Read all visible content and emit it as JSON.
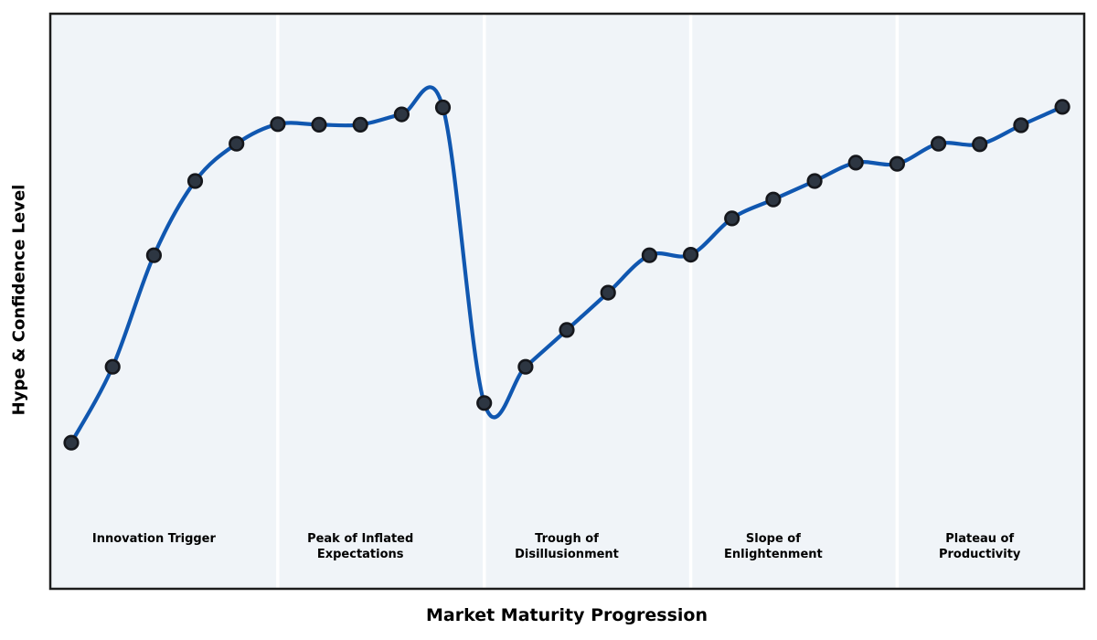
{
  "chart_data": {
    "type": "line",
    "title": "",
    "xlabel": "Market Maturity Progression",
    "ylabel": "Hype & Confidence Level",
    "x": [
      0,
      1,
      2,
      3,
      4,
      5,
      6,
      7,
      8,
      9,
      10,
      11,
      12,
      13,
      14,
      15,
      16,
      17,
      18,
      19,
      20,
      21,
      22,
      23,
      24
    ],
    "y": [
      25.4,
      38.6,
      58.0,
      70.9,
      77.4,
      80.8,
      80.7,
      80.7,
      82.5,
      83.7,
      32.3,
      38.6,
      45.0,
      51.5,
      58.0,
      58.1,
      64.4,
      67.7,
      70.9,
      74.1,
      73.9,
      77.4,
      77.3,
      80.6,
      83.8
    ],
    "xlim": [
      -0.51,
      24.53
    ],
    "ylim": [
      0,
      100
    ],
    "grid": false,
    "legend": "none",
    "curve_style": "smooth-spline-through-points",
    "dividers_x": [
      5,
      10,
      15,
      20
    ],
    "phases": [
      {
        "label": "Innovation Trigger",
        "center_x": 2
      },
      {
        "label": "Peak of Inflated\nExpectations",
        "center_x": 7
      },
      {
        "label": "Trough of\nDisillusionment",
        "center_x": 12
      },
      {
        "label": "Slope of\nEnlightenment",
        "center_x": 17
      },
      {
        "label": "Plateau of\nProductivity",
        "center_x": 22
      }
    ],
    "colors": {
      "line": "#1057b0",
      "marker_fill": "#2d3642",
      "marker_edge": "#15171c",
      "plot_background": "#f0f4f8",
      "divider": "#ffffff",
      "frame": "#1c1c1c",
      "text": "#000000",
      "page_background": "#ffffff"
    }
  }
}
